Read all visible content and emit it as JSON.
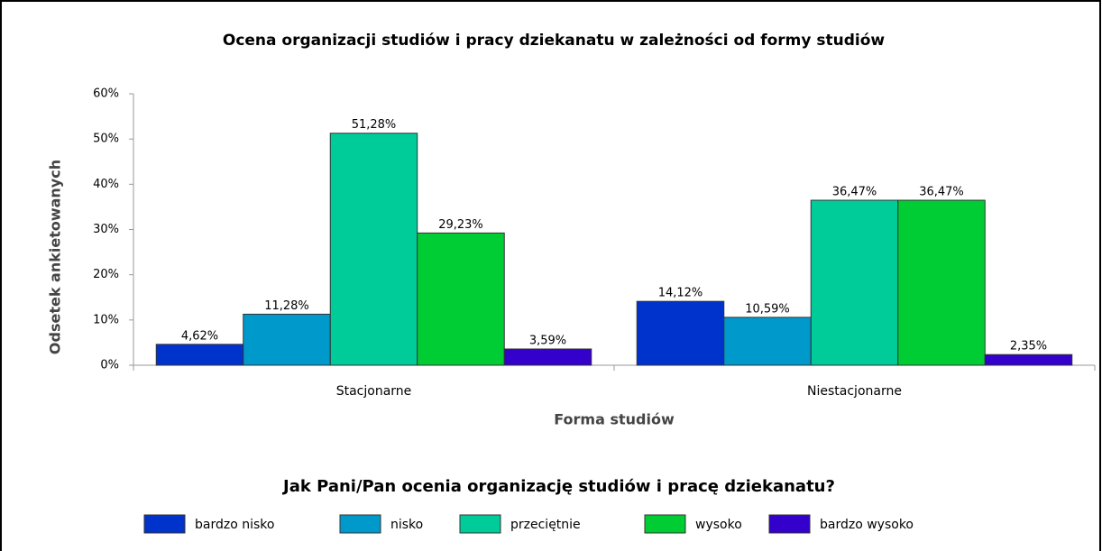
{
  "chart_data": {
    "type": "bar",
    "title": "Ocena organizacji studiów i pracy dziekanatu w zależności od formy studiów",
    "y_label": "Odsetek ankietowanych",
    "x_label": "Forma studiów",
    "legend_title": "Jak Pani/Pan ocenia organizację studiów i pracę dziekanatu?",
    "categories": [
      "Stacjonarne",
      "Niestacjonarne"
    ],
    "ylim": [
      0,
      60
    ],
    "yticks": [
      {
        "value": 0,
        "label": "0%"
      },
      {
        "value": 10,
        "label": "10%"
      },
      {
        "value": 20,
        "label": "20%"
      },
      {
        "value": 30,
        "label": "30%"
      },
      {
        "value": 40,
        "label": "40%"
      },
      {
        "value": 50,
        "label": "50%"
      },
      {
        "value": 60,
        "label": "60%"
      }
    ],
    "series": [
      {
        "name": "bardzo nisko",
        "color": "#0033cc",
        "values": [
          4.62,
          14.12
        ],
        "value_labels": [
          "4,62%",
          "14,12%"
        ]
      },
      {
        "name": "nisko",
        "color": "#0099cc",
        "values": [
          11.28,
          10.59
        ],
        "value_labels": [
          "11,28%",
          "10,59%"
        ]
      },
      {
        "name": "przeciętnie",
        "color": "#00cc99",
        "values": [
          51.28,
          36.47
        ],
        "value_labels": [
          "51,28%",
          "36,47%"
        ]
      },
      {
        "name": "wysoko",
        "color": "#00cc33",
        "values": [
          29.23,
          36.47
        ],
        "value_labels": [
          "29,23%",
          "36,47%"
        ]
      },
      {
        "name": "bardzo wysoko",
        "color": "#3300cc",
        "values": [
          3.59,
          2.35
        ],
        "value_labels": [
          "3,59%",
          "2,35%"
        ]
      }
    ]
  }
}
